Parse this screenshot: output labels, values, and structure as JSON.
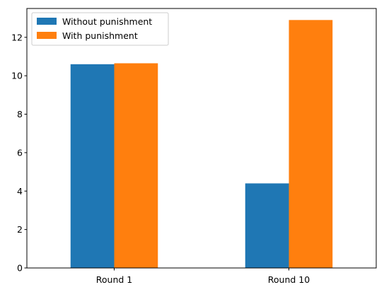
{
  "chart_data": {
    "type": "bar",
    "title": "",
    "xlabel": "",
    "ylabel": "",
    "categories": [
      "Round 1",
      "Round 10"
    ],
    "series": [
      {
        "name": "Without punishment",
        "color": "#1f77b4",
        "values": [
          10.6,
          4.4
        ]
      },
      {
        "name": "With punishment",
        "color": "#ff7f0e",
        "values": [
          10.65,
          12.9
        ]
      }
    ],
    "ylim": [
      0,
      13.5
    ],
    "yticks": [
      "0",
      "2",
      "4",
      "6",
      "8",
      "10",
      "12"
    ],
    "grid": false,
    "legend_position": "top-left"
  }
}
